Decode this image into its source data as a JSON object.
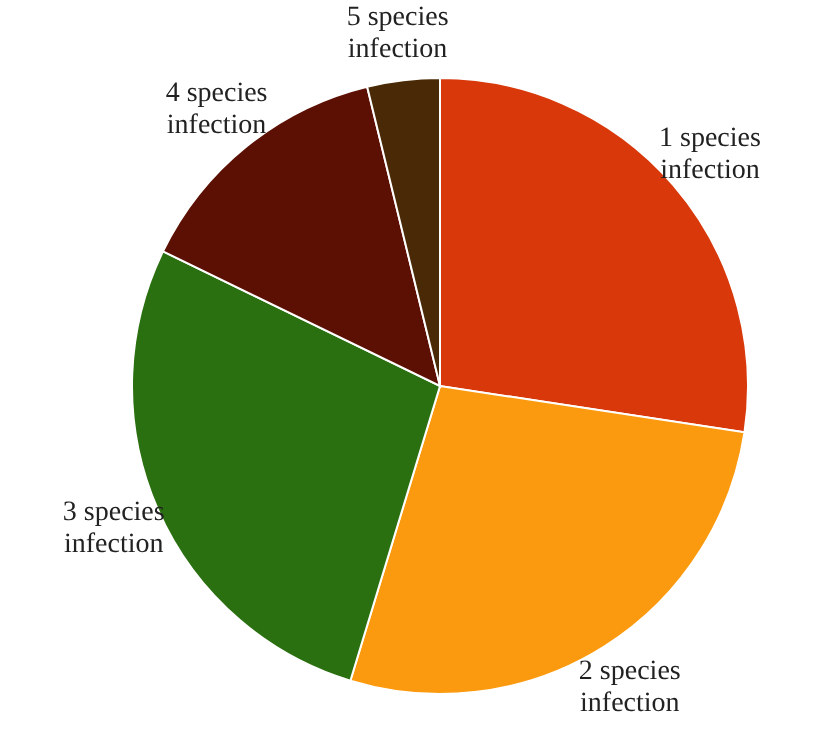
{
  "chart_data": {
    "type": "pie",
    "categories": [
      "1 species infection",
      "2 species infection",
      "3 species infection",
      "4 species infection",
      "5 species infection"
    ],
    "values": [
      27.4,
      27.3,
      27.5,
      14,
      3.8
    ],
    "colors": [
      "#d9380b",
      "#fb9a0e",
      "#2a7010",
      "#5c1004",
      "#4a2a06"
    ]
  }
}
